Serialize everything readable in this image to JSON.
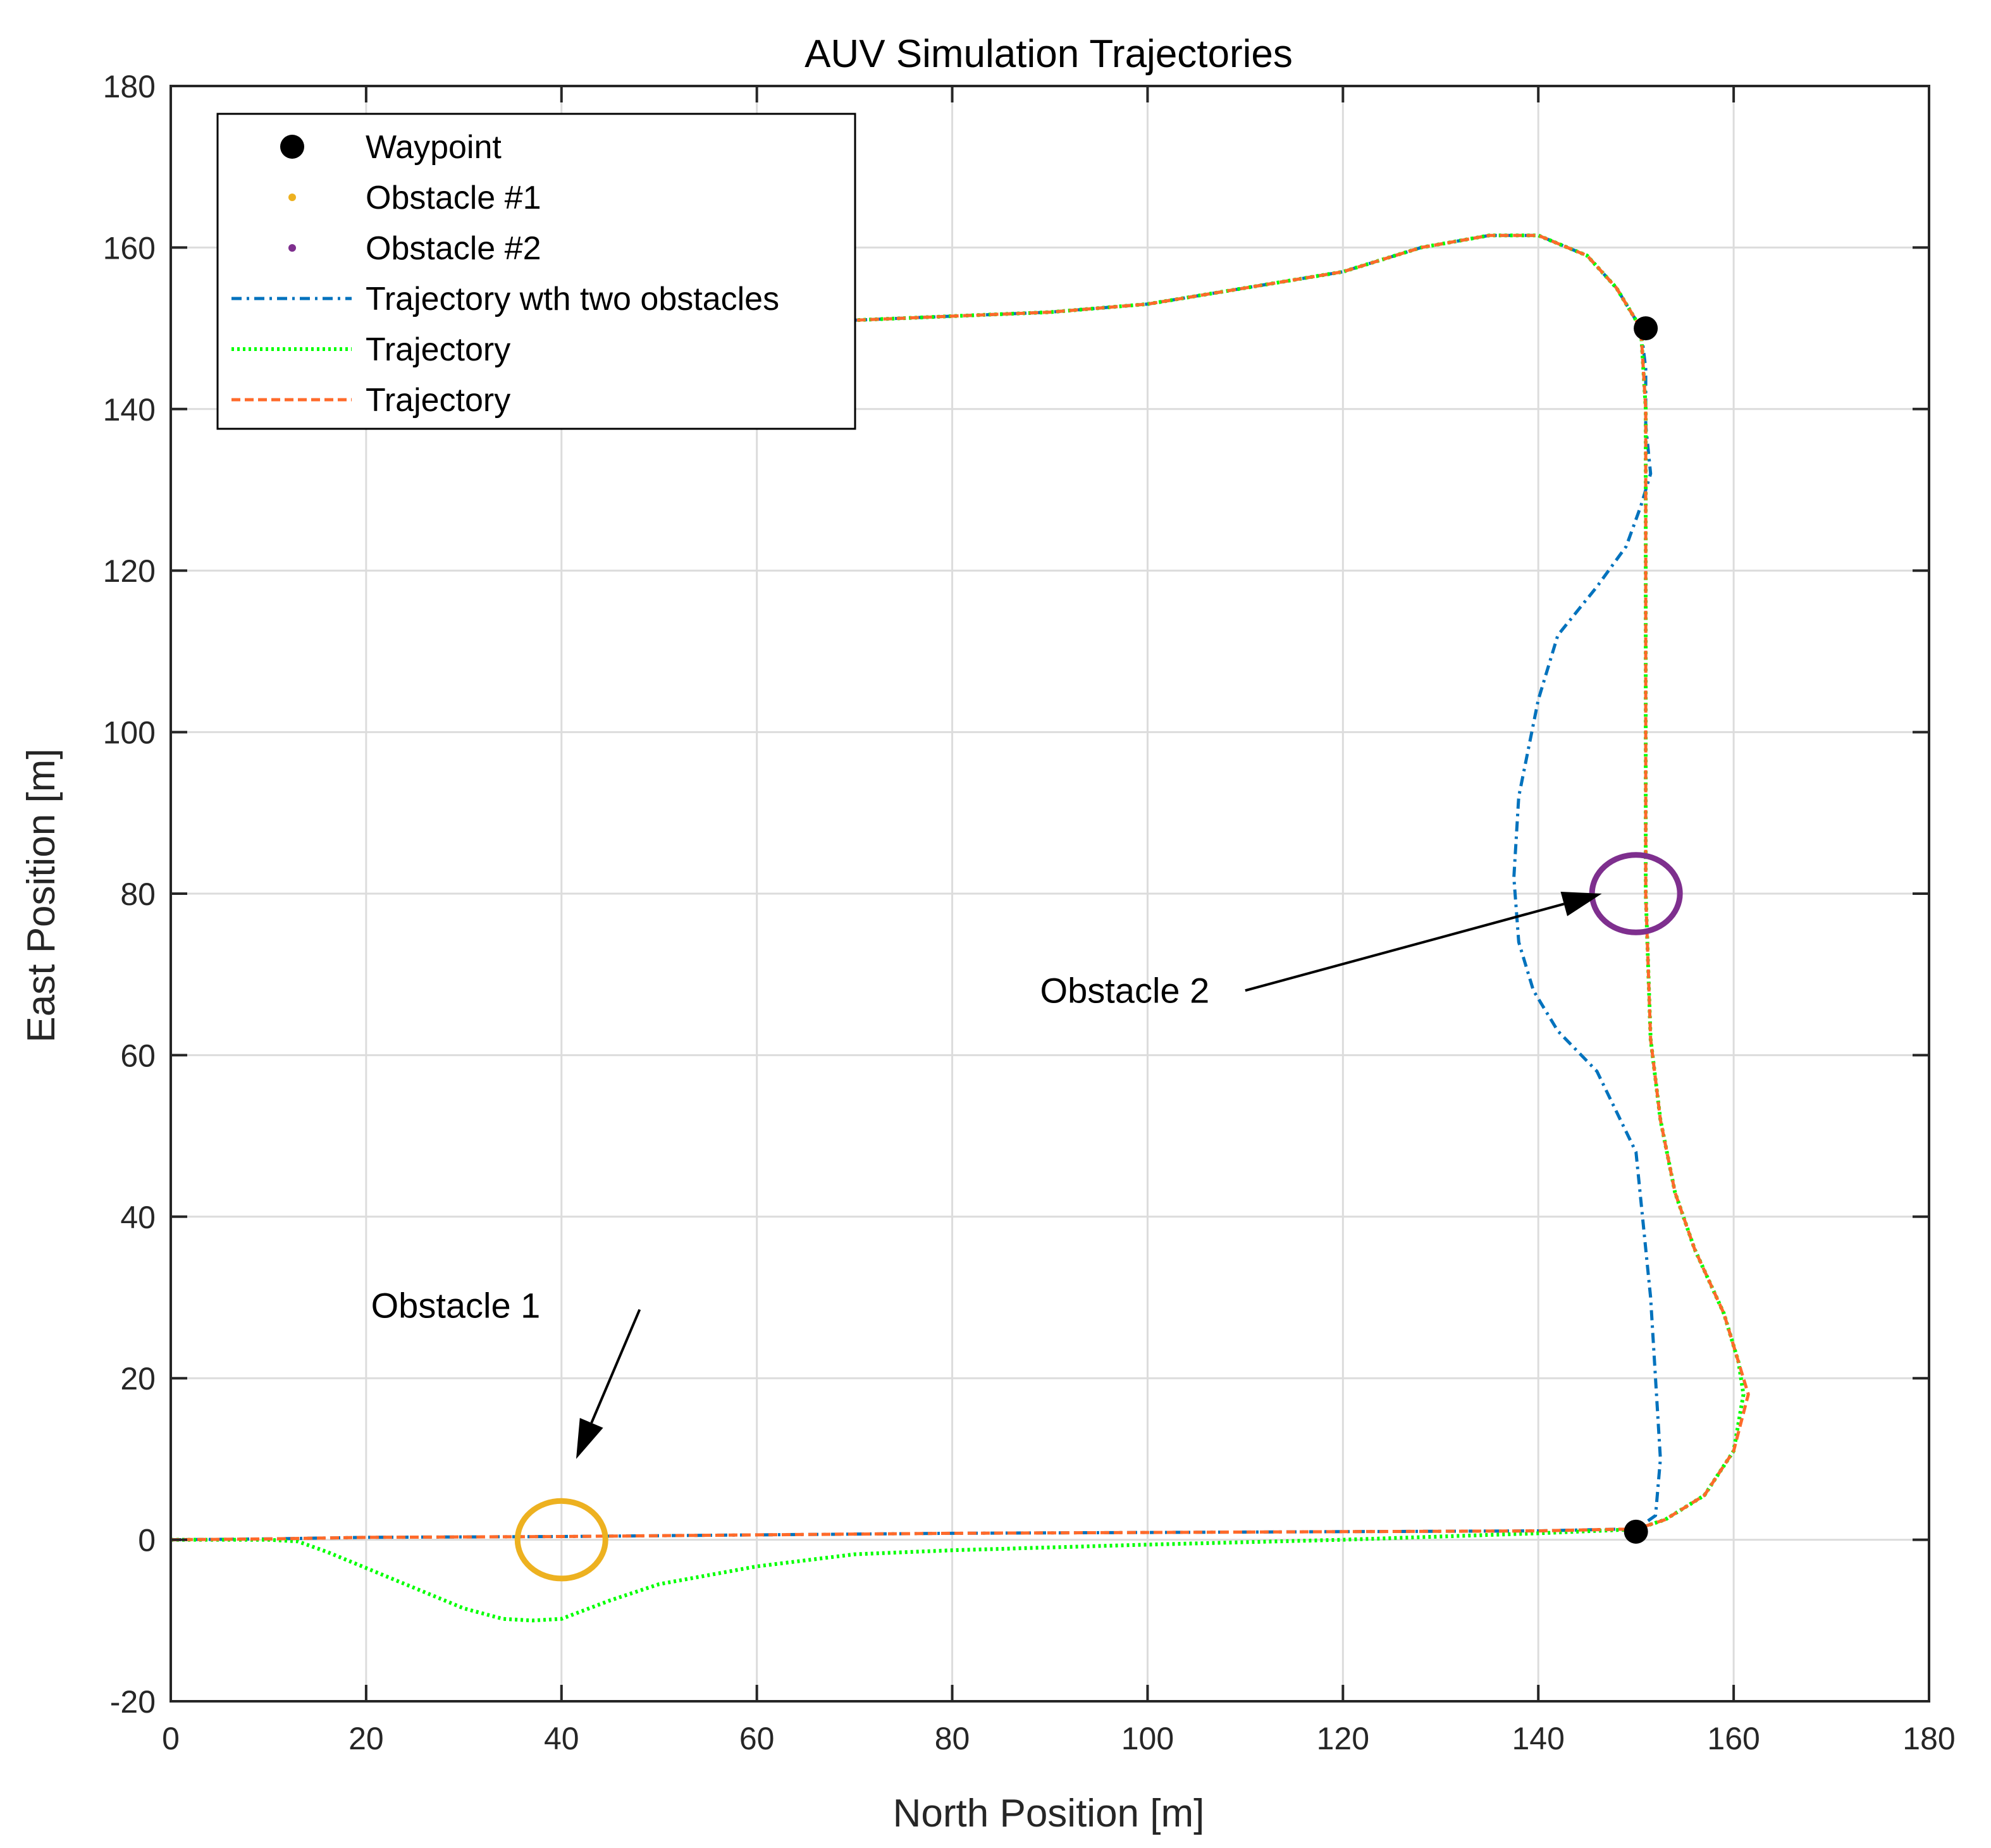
{
  "chart_data": {
    "type": "line",
    "title": "AUV Simulation Trajectories",
    "xlabel": "North Position [m]",
    "ylabel": "East Position [m]",
    "xlim": [
      0,
      180
    ],
    "ylim": [
      -20,
      180
    ],
    "xticks": [
      0,
      20,
      40,
      60,
      80,
      100,
      120,
      140,
      160,
      180
    ],
    "yticks": [
      -20,
      0,
      20,
      40,
      60,
      80,
      100,
      120,
      140,
      160,
      180
    ],
    "grid": true,
    "legend_position": "top-left",
    "legend": [
      {
        "label": "Waypoint",
        "style": "marker",
        "color": "#000000"
      },
      {
        "label": "Obstacle #1",
        "style": "dot",
        "color": "#EDB120"
      },
      {
        "label": "Obstacle #2",
        "style": "dot",
        "color": "#7E2F8E"
      },
      {
        "label": "Trajectory wth two obstacles",
        "style": "dashdot",
        "color": "#0072BD"
      },
      {
        "label": "Trajectory",
        "style": "dotted",
        "color": "#00FF00"
      },
      {
        "label": "Trajectory",
        "style": "dashed",
        "color": "#FF6A2A"
      }
    ],
    "waypoints": [
      {
        "x": 150,
        "y": 1
      },
      {
        "x": 151,
        "y": 150
      }
    ],
    "obstacles": [
      {
        "name": "Obstacle #1",
        "cx": 40,
        "cy": 0,
        "rx": 4.5,
        "ry": 4.8,
        "color": "#EDB120"
      },
      {
        "name": "Obstacle #2",
        "cx": 150,
        "cy": 80,
        "rx": 4.5,
        "ry": 4.8,
        "color": "#7E2F8E"
      }
    ],
    "annotations": [
      {
        "text": "Obstacle 1",
        "text_x": 20.5,
        "text_y": 27.5,
        "from_x": 48,
        "from_y": 28.5,
        "to_x": 41.5,
        "to_y": 10
      },
      {
        "text": "Obstacle 2",
        "text_x": 89,
        "text_y": 66.5,
        "from_x": 110,
        "from_y": 68,
        "to_x": 146.5,
        "to_y": 80
      }
    ],
    "series": [
      {
        "name": "Trajectory wth two obstacles",
        "color": "#0072BD",
        "style": "dashdot",
        "x": [
          0,
          10,
          20,
          40,
          60,
          80,
          100,
          120,
          140,
          148,
          150,
          152,
          152.5,
          151.5,
          150,
          146,
          142,
          139.5,
          138,
          137.5,
          138,
          140,
          142,
          146,
          149,
          150.5,
          151.5,
          151,
          151,
          150.5,
          148,
          145,
          140,
          135,
          128,
          120,
          110,
          100,
          90,
          80,
          70,
          60,
          52
        ],
        "y": [
          0,
          0.1,
          0.3,
          0.4,
          0.6,
          0.8,
          0.9,
          1.0,
          1.1,
          1.3,
          1.3,
          3,
          10,
          30,
          48,
          58,
          63,
          68,
          74,
          82,
          92,
          104,
          112,
          118,
          123,
          128,
          132,
          138,
          145,
          150,
          155,
          159,
          161.5,
          161.5,
          160,
          157,
          155,
          153,
          152,
          151.5,
          151,
          150.8,
          150.8
        ]
      },
      {
        "name": "Trajectory",
        "color": "#00FF00",
        "style": "dotted",
        "x": [
          0,
          10,
          13,
          16,
          20,
          25,
          30,
          34,
          37,
          40,
          45,
          50,
          60,
          70,
          80,
          100,
          120,
          140,
          148,
          150,
          153,
          157,
          160,
          161,
          160.5,
          159,
          156,
          154,
          152.5,
          151.5,
          151,
          151,
          151,
          150.5,
          148,
          145,
          140,
          135,
          128,
          120,
          110,
          100,
          90,
          80,
          70,
          60,
          52
        ],
        "y": [
          0,
          0,
          -0.2,
          -1.5,
          -3.5,
          -6,
          -8.5,
          -9.8,
          -10,
          -9.8,
          -7.5,
          -5.5,
          -3.3,
          -1.8,
          -1.3,
          -0.6,
          0,
          0.8,
          1.2,
          1.3,
          2.5,
          5.5,
          11,
          18,
          22,
          28,
          36,
          43,
          52,
          62,
          80,
          110,
          140,
          150,
          155,
          159,
          161.5,
          161.5,
          160,
          157,
          155,
          153,
          152,
          151.5,
          151,
          150.8,
          150.8
        ]
      },
      {
        "name": "Trajectory",
        "color": "#FF6A2A",
        "style": "dashed",
        "x": [
          0,
          10,
          20,
          40,
          60,
          80,
          100,
          120,
          140,
          148,
          150,
          153,
          157,
          160,
          161.5,
          160.5,
          159,
          156,
          154,
          152.5,
          151.5,
          151,
          151,
          151,
          150.5,
          148,
          145,
          140,
          135,
          128,
          120,
          110,
          100,
          90,
          80,
          70,
          60,
          52
        ],
        "y": [
          0,
          0.1,
          0.3,
          0.4,
          0.6,
          0.8,
          0.9,
          1.0,
          1.1,
          1.3,
          1.3,
          2.5,
          5.5,
          11,
          18,
          22,
          28,
          36,
          43,
          52,
          62,
          80,
          110,
          140,
          150,
          155,
          159,
          161.5,
          161.5,
          160,
          157,
          155,
          153,
          152,
          151.5,
          151,
          150.8,
          150.8
        ]
      }
    ]
  }
}
